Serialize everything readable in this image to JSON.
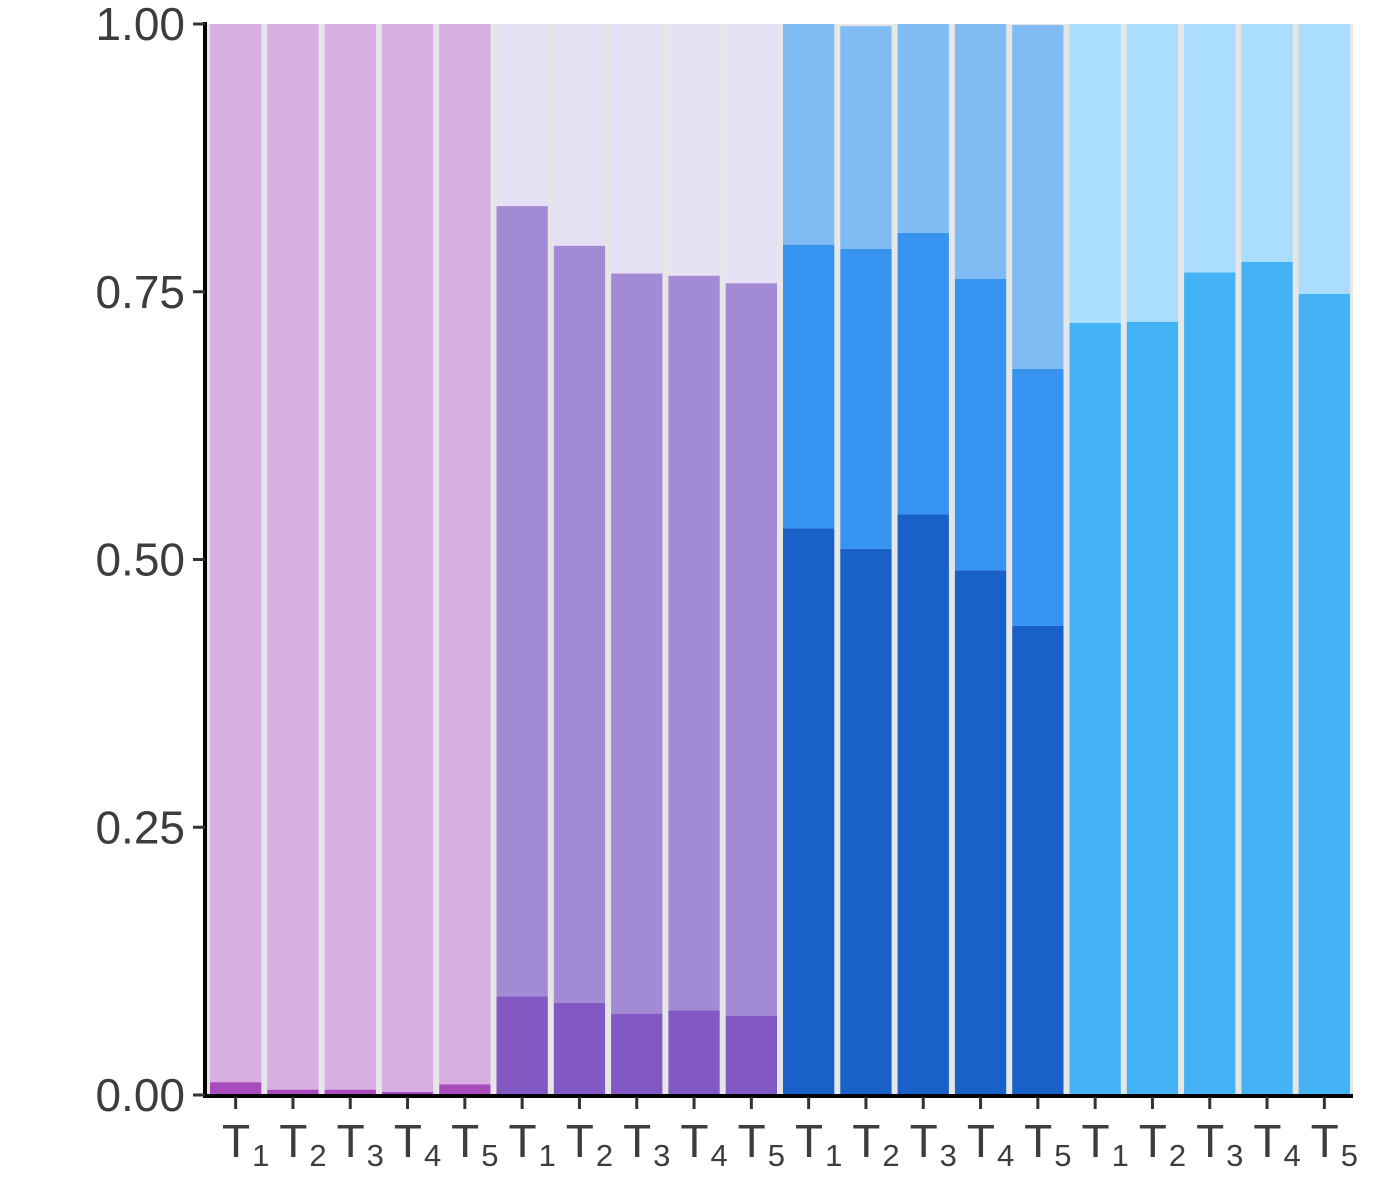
{
  "chart_data": {
    "type": "bar",
    "stacked": true,
    "title": "",
    "xlabel": "",
    "ylabel": "",
    "ylim": [
      0,
      1
    ],
    "yticks": [
      "0.00",
      "0.25",
      "0.50",
      "0.75",
      "1.00"
    ],
    "grid": false,
    "legend": "none",
    "categories": [
      "T1",
      "T2",
      "T3",
      "T4",
      "T5",
      "T1",
      "T2",
      "T3",
      "T4",
      "T5",
      "T1",
      "T2",
      "T3",
      "T4",
      "T5",
      "T1",
      "T2",
      "T3",
      "T4",
      "T5"
    ],
    "tick_labels": [
      {
        "main": "T",
        "sub": "1"
      },
      {
        "main": "T",
        "sub": "2"
      },
      {
        "main": "T",
        "sub": "3"
      },
      {
        "main": "T",
        "sub": "4"
      },
      {
        "main": "T",
        "sub": "5"
      },
      {
        "main": "T",
        "sub": "1"
      },
      {
        "main": "T",
        "sub": "2"
      },
      {
        "main": "T",
        "sub": "3"
      },
      {
        "main": "T",
        "sub": "4"
      },
      {
        "main": "T",
        "sub": "5"
      },
      {
        "main": "T",
        "sub": "1"
      },
      {
        "main": "T",
        "sub": "2"
      },
      {
        "main": "T",
        "sub": "3"
      },
      {
        "main": "T",
        "sub": "4"
      },
      {
        "main": "T",
        "sub": "5"
      },
      {
        "main": "T",
        "sub": "1"
      },
      {
        "main": "T",
        "sub": "2"
      },
      {
        "main": "T",
        "sub": "3"
      },
      {
        "main": "T",
        "sub": "4"
      },
      {
        "main": "T",
        "sub": "5"
      }
    ],
    "bars": [
      {
        "segments": [
          {
            "value": 0.012,
            "color": "#a74bbd"
          },
          {
            "value": 0.988,
            "color": "#d8afe2"
          }
        ]
      },
      {
        "segments": [
          {
            "value": 0.005,
            "color": "#a74bbd"
          },
          {
            "value": 0.995,
            "color": "#d8afe2"
          }
        ]
      },
      {
        "segments": [
          {
            "value": 0.005,
            "color": "#a74bbd"
          },
          {
            "value": 0.995,
            "color": "#d8afe2"
          }
        ]
      },
      {
        "segments": [
          {
            "value": 0.003,
            "color": "#a74bbd"
          },
          {
            "value": 0.997,
            "color": "#d8afe2"
          }
        ]
      },
      {
        "segments": [
          {
            "value": 0.01,
            "color": "#a74bbd"
          },
          {
            "value": 0.99,
            "color": "#d8afe2"
          }
        ]
      },
      {
        "segments": [
          {
            "value": 0.092,
            "color": "#8259c2"
          },
          {
            "value": 0.738,
            "color": "#a38ad4"
          },
          {
            "value": 0.17,
            "color": "#e6e0f4"
          }
        ]
      },
      {
        "segments": [
          {
            "value": 0.086,
            "color": "#8259c2"
          },
          {
            "value": 0.707,
            "color": "#a38ad4"
          },
          {
            "value": 0.207,
            "color": "#e6e0f4"
          }
        ]
      },
      {
        "segments": [
          {
            "value": 0.076,
            "color": "#8259c2"
          },
          {
            "value": 0.691,
            "color": "#a38ad4"
          },
          {
            "value": 0.233,
            "color": "#e6e0f4"
          }
        ]
      },
      {
        "segments": [
          {
            "value": 0.079,
            "color": "#8259c2"
          },
          {
            "value": 0.686,
            "color": "#a38ad4"
          },
          {
            "value": 0.235,
            "color": "#e6e0f4"
          }
        ]
      },
      {
        "segments": [
          {
            "value": 0.074,
            "color": "#8259c2"
          },
          {
            "value": 0.684,
            "color": "#a38ad4"
          },
          {
            "value": 0.242,
            "color": "#e6e0f4"
          }
        ]
      },
      {
        "segments": [
          {
            "value": 0.529,
            "color": "#1960c8"
          },
          {
            "value": 0.265,
            "color": "#3693ef"
          },
          {
            "value": 0.206,
            "color": "#80bbf4"
          }
        ]
      },
      {
        "segments": [
          {
            "value": 0.51,
            "color": "#1960c8"
          },
          {
            "value": 0.28,
            "color": "#3693ef"
          },
          {
            "value": 0.208,
            "color": "#80bbf4"
          }
        ]
      },
      {
        "segments": [
          {
            "value": 0.542,
            "color": "#1960c8"
          },
          {
            "value": 0.263,
            "color": "#3693ef"
          },
          {
            "value": 0.195,
            "color": "#80bbf4"
          }
        ]
      },
      {
        "segments": [
          {
            "value": 0.49,
            "color": "#1960c8"
          },
          {
            "value": 0.272,
            "color": "#3693ef"
          },
          {
            "value": 0.238,
            "color": "#80bbf4"
          }
        ]
      },
      {
        "segments": [
          {
            "value": 0.438,
            "color": "#1960c8"
          },
          {
            "value": 0.24,
            "color": "#3693ef"
          },
          {
            "value": 0.321,
            "color": "#80bbf4"
          }
        ]
      },
      {
        "segments": [
          {
            "value": 0.721,
            "color": "#43b3f5"
          },
          {
            "value": 0.279,
            "color": "#aadefc"
          }
        ]
      },
      {
        "segments": [
          {
            "value": 0.722,
            "color": "#43b3f5"
          },
          {
            "value": 0.278,
            "color": "#aadefc"
          }
        ]
      },
      {
        "segments": [
          {
            "value": 0.768,
            "color": "#43b3f5"
          },
          {
            "value": 0.232,
            "color": "#aadefc"
          }
        ]
      },
      {
        "segments": [
          {
            "value": 0.778,
            "color": "#43b3f5"
          },
          {
            "value": 0.222,
            "color": "#aadefc"
          }
        ]
      },
      {
        "segments": [
          {
            "value": 0.748,
            "color": "#43b3f5"
          },
          {
            "value": 0.252,
            "color": "#aadefc"
          }
        ]
      }
    ],
    "background_color": "#e6e6e6"
  }
}
